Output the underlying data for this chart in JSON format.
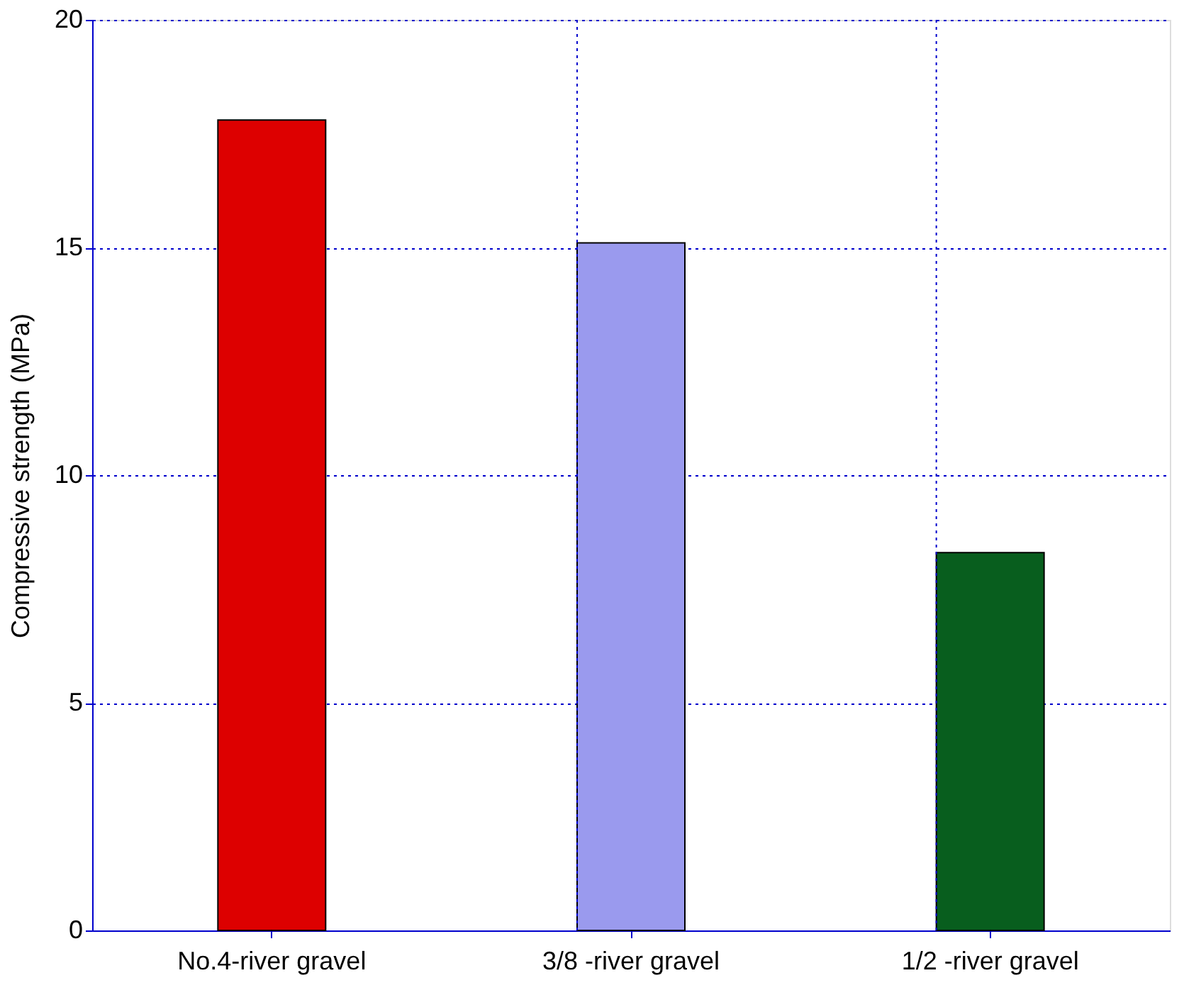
{
  "chart_data": {
    "type": "bar",
    "ylabel": "Compressive strength (MPa)",
    "categories": [
      "No.4-river gravel",
      "3/8 -river gravel",
      "1/2 -river gravel"
    ],
    "values": [
      17.8,
      15.1,
      8.3
    ],
    "colors": [
      "#dd0000",
      "#9a9aee",
      "#085e1e"
    ],
    "ylim": [
      0,
      20
    ],
    "yticks": [
      0,
      5,
      10,
      15,
      20
    ],
    "grid": true
  }
}
